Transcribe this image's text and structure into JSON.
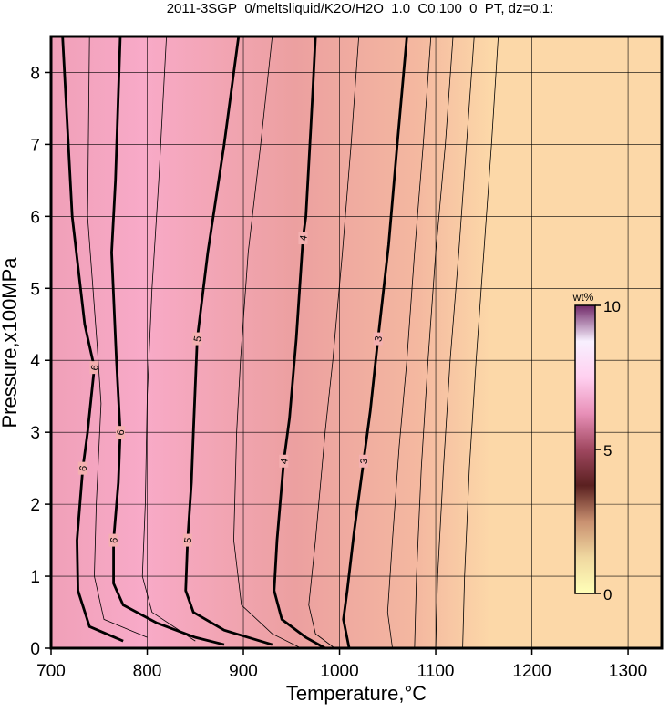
{
  "chart_data": {
    "type": "contour",
    "title": "2011-3SGP_0/meltsliquid/K2O/H2O_1.0_C0.100_0_PT, dz=0.1:",
    "x_label": "Temperature,°C",
    "y_label": "Pressure,x100MPa",
    "xlim": [
      700,
      1335
    ],
    "ylim": [
      0,
      8.5
    ],
    "xticks": [
      700,
      800,
      900,
      1000,
      1100,
      1200,
      1300
    ],
    "yticks": [
      0,
      1,
      2,
      3,
      4,
      5,
      6,
      7,
      8
    ],
    "grid": true,
    "series": [
      {
        "level": 6,
        "bold": true,
        "x": [
          712,
          722,
          735,
          745,
          738,
          733,
          727,
          728,
          740,
          775
        ],
        "y": [
          8.5,
          6,
          4.5,
          3.9,
          3,
          2.5,
          1.5,
          0.8,
          0.3,
          0.1
        ]
      },
      {
        "level": 6,
        "bold": true,
        "x": [
          772,
          767,
          763,
          768,
          772,
          770,
          765,
          765,
          775,
          810,
          850,
          880
        ],
        "y": [
          8.5,
          6.5,
          5.5,
          4,
          3,
          2.3,
          1.5,
          0.9,
          0.6,
          0.35,
          0.15,
          0.05
        ]
      },
      {
        "level": 5,
        "bold": true,
        "x": [
          895,
          880,
          863,
          852,
          848,
          846,
          842,
          840,
          848,
          880,
          930
        ],
        "y": [
          8.5,
          7,
          5.5,
          4.3,
          3,
          2.3,
          1.5,
          0.8,
          0.5,
          0.25,
          0.05
        ]
      },
      {
        "level": 4,
        "bold": true,
        "x": [
          975,
          972,
          970,
          965,
          962,
          955,
          948,
          942,
          935,
          932,
          940,
          965,
          985
        ],
        "y": [
          8.5,
          7.7,
          7.2,
          6,
          5.7,
          4.3,
          3.2,
          2.6,
          1.5,
          0.8,
          0.4,
          0.15,
          0
        ]
      },
      {
        "level": 3,
        "bold": true,
        "x": [
          1070,
          1060,
          1051,
          1040,
          1032,
          1025,
          1015,
          1008,
          1004,
          1010
        ],
        "y": [
          8.5,
          7,
          5.6,
          4.3,
          3.3,
          2.6,
          1.6,
          0.8,
          0.4,
          0
        ]
      },
      {
        "level": 5.5,
        "bold": false,
        "x": [
          740,
          738,
          748,
          752,
          747,
          745,
          755,
          800
        ],
        "y": [
          8.5,
          6,
          4.2,
          3.4,
          2,
          1,
          0.4,
          0.15
        ]
      },
      {
        "level": 5.8,
        "bold": false,
        "x": [
          820,
          812,
          805,
          800,
          798,
          795,
          805,
          850
        ],
        "y": [
          8.5,
          6.5,
          5,
          3.5,
          2,
          1,
          0.5,
          0.1
        ]
      },
      {
        "level": 4.5,
        "bold": false,
        "x": [
          930,
          918,
          905,
          897,
          893,
          890,
          898,
          930,
          960
        ],
        "y": [
          8.5,
          7,
          5.5,
          4,
          3,
          1.5,
          0.6,
          0.2,
          0
        ]
      },
      {
        "level": 3.5,
        "bold": false,
        "x": [
          1020,
          1012,
          1003,
          993,
          985,
          975,
          968,
          975,
          995
        ],
        "y": [
          8.5,
          7,
          5.5,
          4,
          3,
          1.5,
          0.6,
          0.2,
          0
        ]
      },
      {
        "level": 2.8,
        "bold": false,
        "x": [
          1095,
          1087,
          1078,
          1070,
          1062,
          1055,
          1050,
          1055
        ],
        "y": [
          8.5,
          7,
          5.5,
          4,
          2.8,
          1.5,
          0.5,
          0
        ]
      },
      {
        "level": 2.6,
        "bold": false,
        "x": [
          1118,
          1110,
          1100,
          1092,
          1085,
          1080,
          1078
        ],
        "y": [
          8.5,
          7,
          5.5,
          4,
          2.5,
          1,
          0
        ]
      },
      {
        "level": 2.4,
        "bold": false,
        "x": [
          1140,
          1132,
          1124,
          1115,
          1108,
          1102,
          1100
        ],
        "y": [
          8.5,
          7,
          5.5,
          4,
          2.5,
          1,
          0
        ]
      },
      {
        "level": 2.2,
        "bold": false,
        "x": [
          1165,
          1158,
          1150,
          1142,
          1135,
          1130,
          1128
        ],
        "y": [
          8.5,
          7,
          5.5,
          4,
          2.5,
          1,
          0
        ]
      }
    ],
    "colorbar": {
      "label": "wt%",
      "zlim": [
        0,
        10
      ],
      "ticks": [
        0,
        5,
        10
      ],
      "colormap": [
        "#ffffb8",
        "#f0d8a0",
        "#c89070",
        "#5a2020",
        "#a04860",
        "#e890b8",
        "#ffd0f0",
        "#f8f0ff",
        "#702868"
      ]
    }
  }
}
